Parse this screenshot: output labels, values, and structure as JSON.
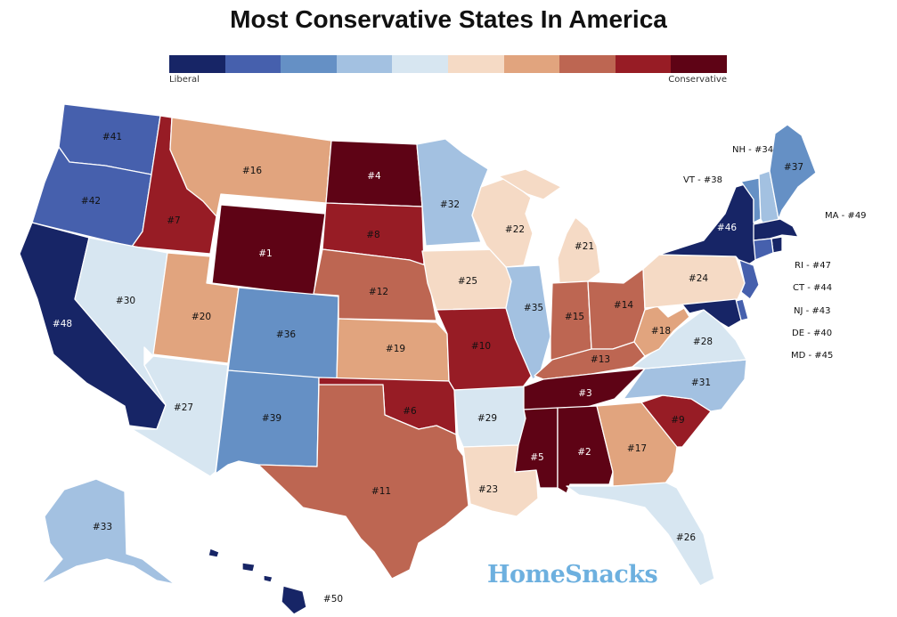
{
  "title": "Most Conservative States In America",
  "legend": {
    "low_label": "Liberal",
    "high_label": "Conservative",
    "colors": [
      "#172566",
      "#4660ad",
      "#6590c5",
      "#a3c1e1",
      "#d7e6f1",
      "#f5dac5",
      "#e1a47e",
      "#bd6652",
      "#971c25",
      "#5e0315"
    ]
  },
  "brand": "HomeSnacks",
  "ranks": {
    "WA": "#41",
    "OR": "#42",
    "CA": "#48",
    "ID": "#7",
    "NV": "#30",
    "MT": "#16",
    "WY": "#1",
    "UT": "#20",
    "AZ": "#27",
    "CO": "#36",
    "NM": "#39",
    "ND": "#4",
    "SD": "#8",
    "NE": "#12",
    "KS": "#19",
    "OK": "#6",
    "TX": "#11",
    "MN": "#32",
    "IA": "#25",
    "MO": "#10",
    "AR": "#29",
    "LA": "#23",
    "WI": "#22",
    "IL": "#35",
    "MI": "#21",
    "IN": "#15",
    "OH": "#14",
    "KY": "#13",
    "TN": "#3",
    "MS": "#5",
    "AL": "#2",
    "GA": "#17",
    "FL": "#26",
    "SC": "#9",
    "NC": "#31",
    "VA": "#28",
    "WV": "#18",
    "PA": "#24",
    "NY": "#46",
    "ME": "#37",
    "AK": "#33",
    "HI": "#50"
  },
  "callouts": {
    "NH": "NH - #34",
    "VT": "VT - #38",
    "MA": "MA - #49",
    "RI": "RI - #47",
    "CT": "CT - #44",
    "NJ": "NJ - #43",
    "DE": "DE - #40",
    "MD": "MD - #45"
  }
}
